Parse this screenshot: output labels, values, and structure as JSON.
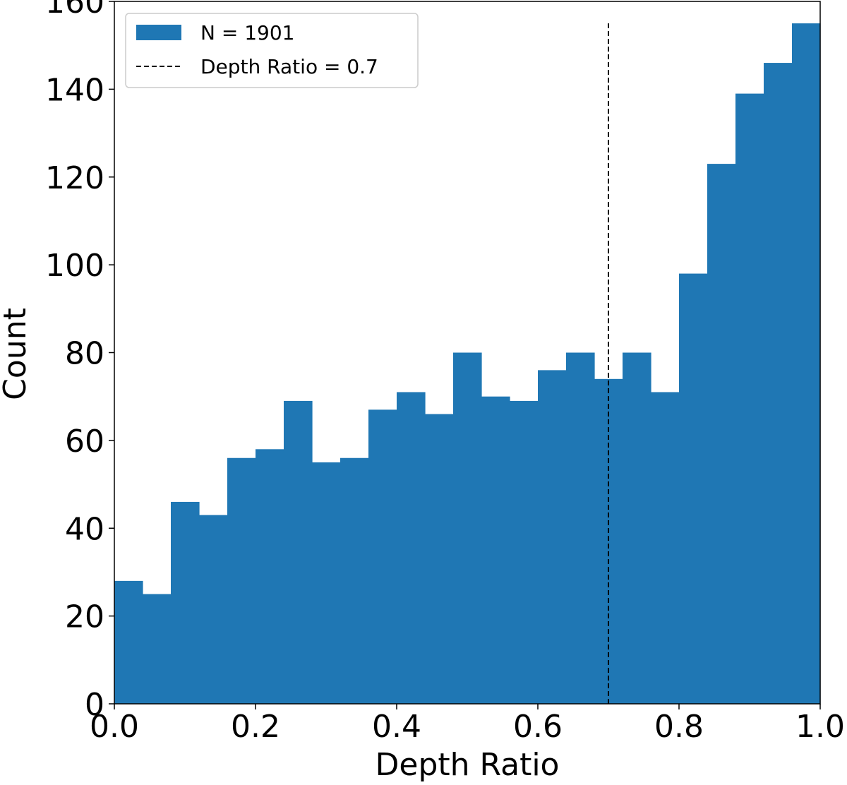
{
  "chart_data": {
    "type": "bar",
    "title": "",
    "xlabel": "Depth Ratio",
    "ylabel": "Count",
    "xlim": [
      0.0,
      1.0
    ],
    "ylim": [
      0,
      160
    ],
    "grid": false,
    "legend_position": "top-left",
    "bin_edges": [
      0.0,
      0.04,
      0.08,
      0.12,
      0.16,
      0.2,
      0.24,
      0.28,
      0.32,
      0.36,
      0.4,
      0.44,
      0.48,
      0.52,
      0.56,
      0.6,
      0.64,
      0.68,
      0.72,
      0.76,
      0.8,
      0.84,
      0.88,
      0.92,
      0.96,
      1.0
    ],
    "counts": [
      28,
      25,
      46,
      43,
      56,
      58,
      69,
      55,
      56,
      67,
      71,
      66,
      80,
      70,
      69,
      76,
      80,
      74,
      80,
      71,
      98,
      123,
      139,
      146,
      155
    ],
    "x_ticks": [
      0.0,
      0.2,
      0.4,
      0.6,
      0.8,
      1.0
    ],
    "x_tick_labels": [
      "0.0",
      "0.2",
      "0.4",
      "0.6",
      "0.8",
      "1.0"
    ],
    "y_ticks": [
      0,
      20,
      40,
      60,
      80,
      100,
      120,
      140,
      160
    ],
    "y_tick_labels": [
      "0",
      "20",
      "40",
      "60",
      "80",
      "100",
      "120",
      "140",
      "160"
    ],
    "series": [
      {
        "name": "N = 1901",
        "kind": "histogram",
        "color": "#1f77b4"
      },
      {
        "name": "Depth Ratio = 0.7",
        "kind": "vline",
        "x": 0.7,
        "y_range": [
          0,
          155
        ],
        "color": "#000000",
        "linestyle": "dashed"
      }
    ]
  }
}
